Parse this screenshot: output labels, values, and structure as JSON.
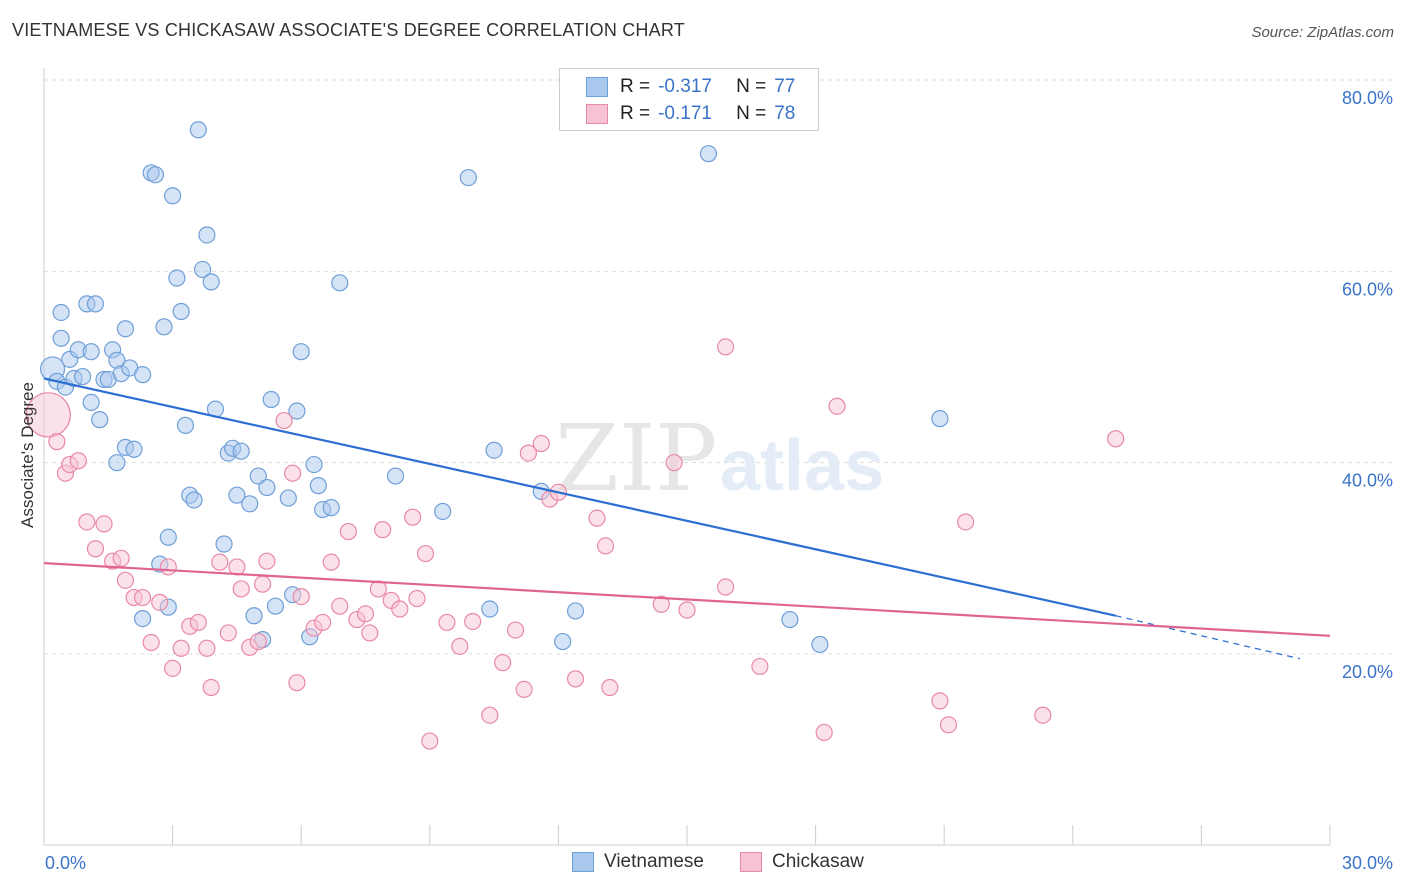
{
  "title": "VIETNAMESE VS CHICKASAW ASSOCIATE'S DEGREE CORRELATION CHART",
  "source": "Source: ZipAtlas.com",
  "watermark": {
    "zip": "ZIP",
    "atlas": "atlas"
  },
  "legend": {
    "rows": [
      {
        "r_label": "R =",
        "r_value": "-0.317",
        "n_label": "N =",
        "n_value": "77",
        "color": "#a9c8ee",
        "border": "#6f9fd8"
      },
      {
        "r_label": "R =",
        "r_value": "-0.171",
        "n_label": "N =",
        "n_value": "78",
        "color": "#f7c3d2",
        "border": "#e889a7"
      }
    ]
  },
  "colors": {
    "blue_fill": "#a9c8ee",
    "blue_stroke": "#6f9fd8",
    "blue_line": "#2c6fd1",
    "pink_fill": "#f7c3d2",
    "pink_stroke": "#e889a7",
    "pink_line": "#e0648f",
    "axis_text": "#3a73c8"
  },
  "chart_data": {
    "type": "scatter",
    "ylabel": "Associate's Degree",
    "x_ticks": [
      "0.0%",
      "30.0%"
    ],
    "y_ticks": [
      "20.0%",
      "40.0%",
      "60.0%",
      "80.0%"
    ],
    "xlim": [
      0,
      30
    ],
    "ylim": [
      0,
      82
    ],
    "grid": true,
    "legend_position": "top-center",
    "series": [
      {
        "name": "Vietnamese",
        "trend": {
          "x0": 0,
          "y0": 48.8,
          "x1": 25,
          "y1": 24.0,
          "dash_to_x": 29.3,
          "dash_to_y": 19.5
        },
        "points": [
          [
            0.2,
            49.8
          ],
          [
            0.3,
            48.5
          ],
          [
            0.4,
            53
          ],
          [
            0.4,
            55.7
          ],
          [
            0.5,
            47.9
          ],
          [
            0.6,
            50.8
          ],
          [
            0.7,
            48.8
          ],
          [
            0.8,
            51.8
          ],
          [
            0.9,
            49
          ],
          [
            1.0,
            56.6
          ],
          [
            1.1,
            46.3
          ],
          [
            1.1,
            51.6
          ],
          [
            1.2,
            56.6
          ],
          [
            1.3,
            44.5
          ],
          [
            1.4,
            48.7
          ],
          [
            1.5,
            48.7
          ],
          [
            1.6,
            51.8
          ],
          [
            1.7,
            50.7
          ],
          [
            1.7,
            40
          ],
          [
            1.8,
            49.3
          ],
          [
            1.9,
            41.6
          ],
          [
            1.9,
            54
          ],
          [
            2.0,
            49.9
          ],
          [
            2.1,
            41.4
          ],
          [
            2.3,
            49.2
          ],
          [
            2.3,
            23.7
          ],
          [
            2.5,
            70.3
          ],
          [
            2.6,
            70.1
          ],
          [
            2.7,
            29.4
          ],
          [
            2.8,
            54.2
          ],
          [
            2.9,
            24.9
          ],
          [
            2.9,
            32.2
          ],
          [
            3.0,
            67.9
          ],
          [
            3.1,
            59.3
          ],
          [
            3.2,
            55.8
          ],
          [
            3.3,
            43.9
          ],
          [
            3.4,
            36.6
          ],
          [
            3.5,
            36.1
          ],
          [
            3.6,
            74.8
          ],
          [
            3.7,
            60.2
          ],
          [
            3.8,
            63.8
          ],
          [
            3.9,
            58.9
          ],
          [
            4.0,
            45.6
          ],
          [
            4.2,
            31.5
          ],
          [
            4.3,
            41
          ],
          [
            4.4,
            41.5
          ],
          [
            4.5,
            36.6
          ],
          [
            4.6,
            41.2
          ],
          [
            4.8,
            35.7
          ],
          [
            4.9,
            24
          ],
          [
            5.0,
            38.6
          ],
          [
            5.1,
            21.5
          ],
          [
            5.2,
            37.4
          ],
          [
            5.3,
            46.6
          ],
          [
            5.4,
            25
          ],
          [
            5.7,
            36.3
          ],
          [
            5.8,
            26.2
          ],
          [
            5.9,
            45.4
          ],
          [
            6.0,
            51.6
          ],
          [
            6.3,
            39.8
          ],
          [
            6.4,
            37.6
          ],
          [
            6.5,
            35.1
          ],
          [
            6.2,
            21.8
          ],
          [
            6.7,
            35.3
          ],
          [
            6.9,
            58.8
          ],
          [
            8.2,
            38.6
          ],
          [
            9.3,
            34.9
          ],
          [
            9.9,
            69.8
          ],
          [
            10.4,
            24.7
          ],
          [
            10.5,
            41.3
          ],
          [
            11.6,
            37
          ],
          [
            12.1,
            21.3
          ],
          [
            12.4,
            24.5
          ],
          [
            15.5,
            72.3
          ],
          [
            17.4,
            23.6
          ],
          [
            18.1,
            21
          ],
          [
            20.9,
            44.6
          ]
        ]
      },
      {
        "name": "Chickasaw",
        "trend": {
          "x0": 0,
          "y0": 29.5,
          "x1": 30,
          "y1": 21.9
        },
        "points": [
          [
            0.1,
            45
          ],
          [
            0.3,
            42.2
          ],
          [
            0.5,
            38.9
          ],
          [
            0.6,
            39.8
          ],
          [
            0.8,
            40.2
          ],
          [
            1.0,
            33.8
          ],
          [
            1.2,
            31
          ],
          [
            1.4,
            33.6
          ],
          [
            1.6,
            29.7
          ],
          [
            1.8,
            30
          ],
          [
            1.9,
            27.7
          ],
          [
            2.1,
            25.9
          ],
          [
            2.3,
            25.9
          ],
          [
            2.5,
            21.2
          ],
          [
            2.7,
            25.4
          ],
          [
            2.9,
            29.1
          ],
          [
            3.0,
            18.5
          ],
          [
            3.2,
            20.6
          ],
          [
            3.4,
            22.9
          ],
          [
            3.6,
            23.3
          ],
          [
            3.8,
            20.6
          ],
          [
            3.9,
            16.5
          ],
          [
            4.1,
            29.6
          ],
          [
            4.3,
            22.2
          ],
          [
            4.5,
            29.1
          ],
          [
            4.6,
            26.8
          ],
          [
            4.8,
            20.7
          ],
          [
            5.0,
            21.3
          ],
          [
            5.1,
            27.3
          ],
          [
            5.2,
            29.7
          ],
          [
            5.6,
            44.4
          ],
          [
            5.8,
            38.9
          ],
          [
            5.9,
            17
          ],
          [
            6.0,
            26
          ],
          [
            6.3,
            22.7
          ],
          [
            6.5,
            23.3
          ],
          [
            6.7,
            29.6
          ],
          [
            6.9,
            25
          ],
          [
            7.1,
            32.8
          ],
          [
            7.3,
            23.6
          ],
          [
            7.5,
            24.2
          ],
          [
            7.6,
            22.2
          ],
          [
            7.8,
            26.8
          ],
          [
            7.9,
            33
          ],
          [
            8.1,
            25.6
          ],
          [
            8.3,
            24.7
          ],
          [
            8.6,
            34.3
          ],
          [
            8.7,
            25.8
          ],
          [
            8.9,
            30.5
          ],
          [
            9.0,
            10.9
          ],
          [
            9.4,
            23.3
          ],
          [
            9.7,
            20.8
          ],
          [
            10.0,
            23.4
          ],
          [
            10.4,
            13.6
          ],
          [
            10.7,
            19.1
          ],
          [
            11.0,
            22.5
          ],
          [
            11.2,
            16.3
          ],
          [
            11.3,
            41
          ],
          [
            11.6,
            42
          ],
          [
            11.8,
            36.2
          ],
          [
            12.0,
            36.9
          ],
          [
            12.4,
            17.4
          ],
          [
            12.9,
            34.2
          ],
          [
            13.1,
            31.3
          ],
          [
            13.2,
            16.5
          ],
          [
            14.4,
            25.2
          ],
          [
            14.7,
            40
          ],
          [
            15.0,
            24.6
          ],
          [
            15.9,
            27
          ],
          [
            15.9,
            52.1
          ],
          [
            16.7,
            18.7
          ],
          [
            18.2,
            11.8
          ],
          [
            18.5,
            45.9
          ],
          [
            20.9,
            15.1
          ],
          [
            21.1,
            12.6
          ],
          [
            21.5,
            33.8
          ],
          [
            23.3,
            13.6
          ],
          [
            25.0,
            42.5
          ]
        ]
      }
    ]
  }
}
